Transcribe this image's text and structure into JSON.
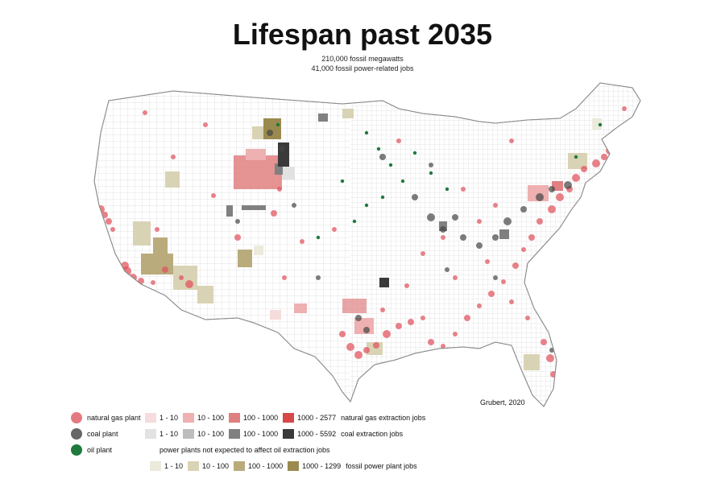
{
  "title": "Lifespan past 2035",
  "subtitle_line1": "210,000 fossil megawatts",
  "subtitle_line2": "41,000 fossil power-related jobs",
  "credit": "Grubert, 2020",
  "colors": {
    "gas_plant": "#e0606a",
    "coal_plant": "#555555",
    "oil_plant": "#1e7a3c",
    "land": "#ffffff",
    "border": "#bfbfbf"
  },
  "legend": {
    "plants": [
      {
        "label": "natural gas plant",
        "color": "#e47a80"
      },
      {
        "label": "coal plant",
        "color": "#666666"
      },
      {
        "label": "oil plant",
        "color": "#1f7a3d"
      }
    ],
    "gas_jobs": {
      "bins": [
        {
          "label": "1 - 10",
          "color": "#f6dcdc"
        },
        {
          "label": "10 - 100",
          "color": "#eeb0b0"
        },
        {
          "label": "100 - 1000",
          "color": "#e08080"
        },
        {
          "label": "1000 - 2577",
          "color": "#d84848"
        }
      ],
      "title": "natural gas extraction jobs"
    },
    "coal_jobs": {
      "bins": [
        {
          "label": "1 - 10",
          "color": "#e2e2e2"
        },
        {
          "label": "10 - 100",
          "color": "#bdbdbd"
        },
        {
          "label": "100 - 1000",
          "color": "#808080"
        },
        {
          "label": "1000 - 5592",
          "color": "#3a3a3a"
        }
      ],
      "title": "coal extraction jobs"
    },
    "oil_note": "power plants not expected to affect oil extraction jobs",
    "plant_jobs": {
      "bins": [
        {
          "label": "1 - 10",
          "color": "#eceadb"
        },
        {
          "label": "10 - 100",
          "color": "#d9d3b5"
        },
        {
          "label": "100 - 1000",
          "color": "#b9ab7c"
        },
        {
          "label": "1000 - 1299",
          "color": "#9b8a4f"
        }
      ],
      "title": "fossil power plant jobs"
    }
  }
}
